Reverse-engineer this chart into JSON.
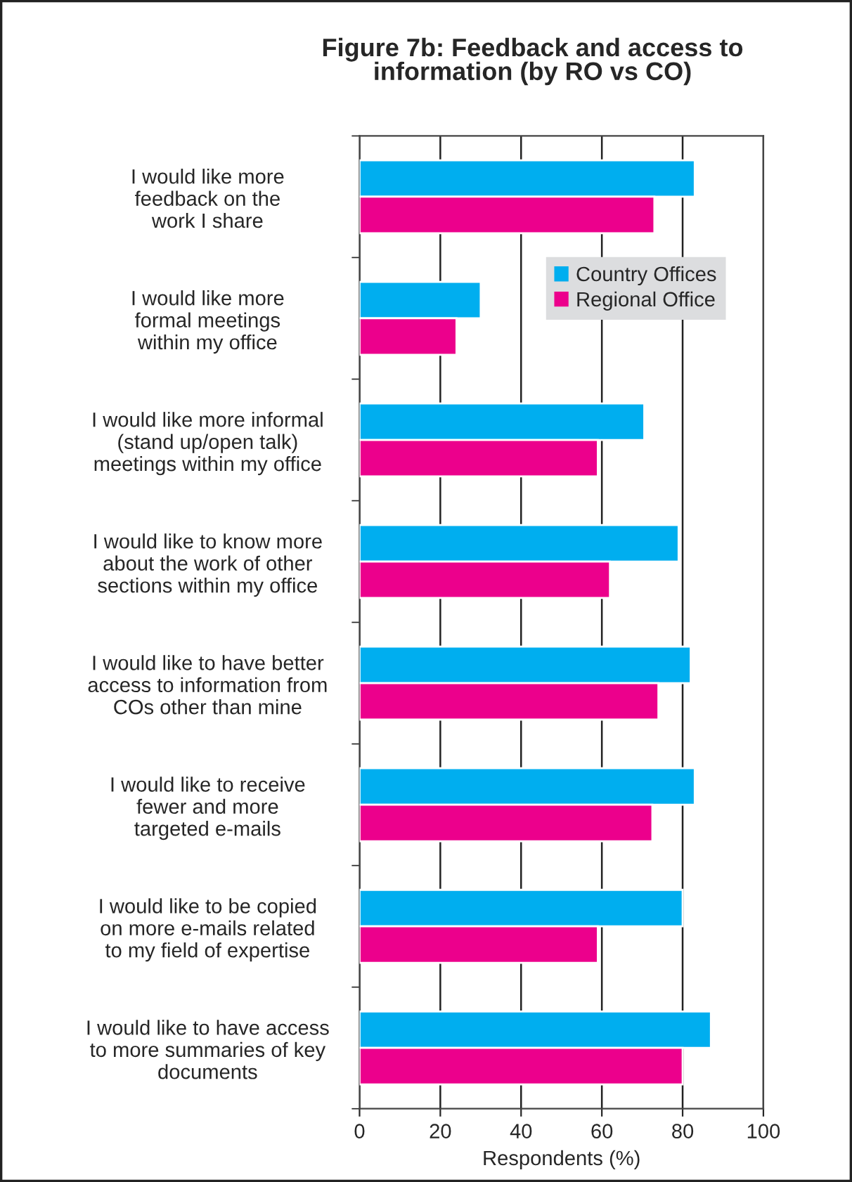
{
  "chart_data": {
    "type": "bar",
    "orientation": "horizontal",
    "title": "Figure 7b: Feedback and access to\ninformation (by RO vs CO)",
    "xlabel": "Respondents (%)",
    "categories": [
      "I would like more\nfeedback on the\nwork I share",
      "I would like more\nformal meetings\nwithin my office",
      "I would like more informal\n(stand up/open talk)\nmeetings within my office",
      "I would like to know more\nabout the work of other\nsections within my office",
      "I would like to have better\naccess to information from\nCOs other than mine",
      "I would like to receive\nfewer and more\ntargeted e-mails",
      "I would like to be copied\non more e-mails related\nto my field of expertise",
      "I would like to have access\nto more summaries of key\ndocuments"
    ],
    "series": [
      {
        "name": "Country Offices",
        "color": "#00aeef",
        "values": [
          83,
          30,
          70.5,
          79,
          82,
          83,
          80,
          87
        ]
      },
      {
        "name": "Regional Office",
        "color": "#ec008c",
        "values": [
          73,
          24,
          59,
          62,
          74,
          72.5,
          59,
          80
        ]
      }
    ],
    "xlim": [
      0,
      100
    ],
    "xticks": [
      0,
      20,
      40,
      60,
      80,
      100
    ],
    "grid": "x",
    "legend": "top right"
  }
}
